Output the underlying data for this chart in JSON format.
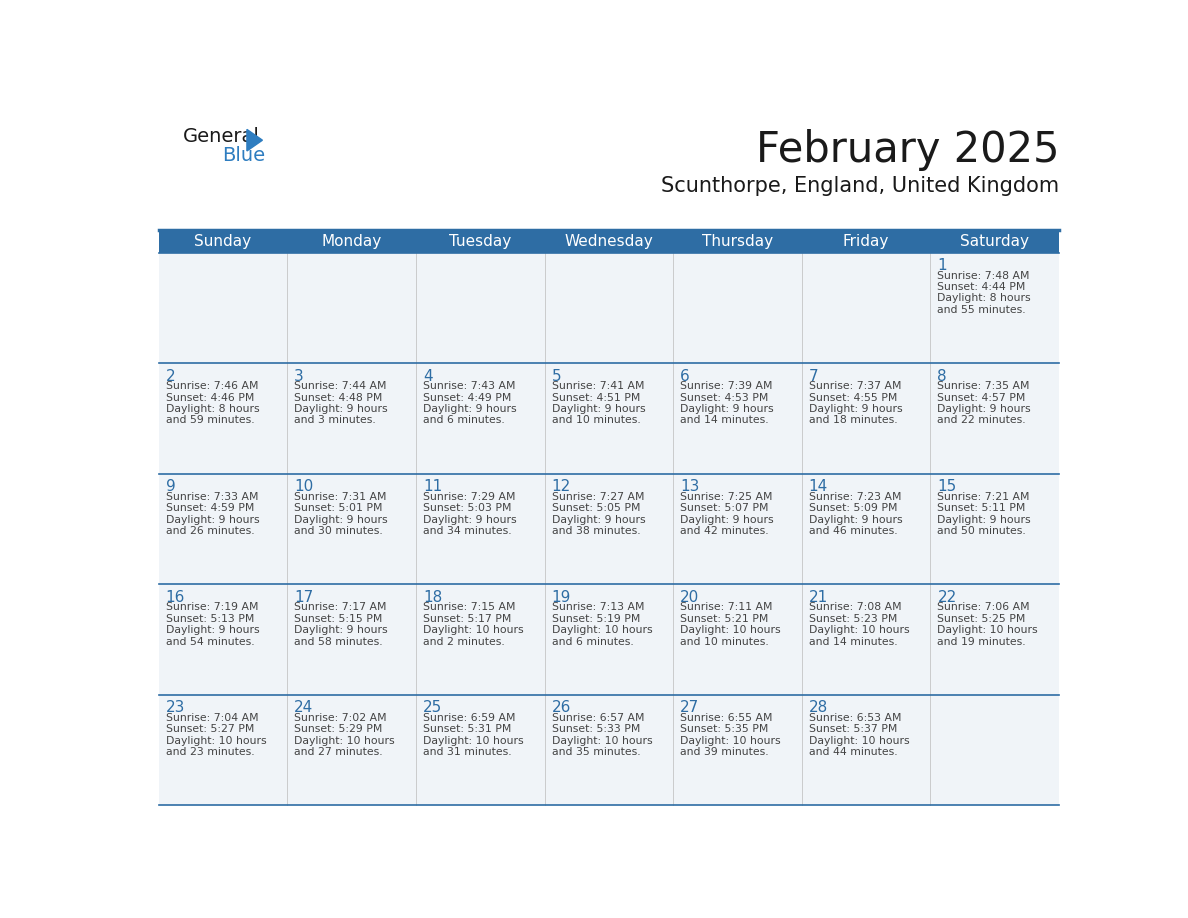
{
  "title": "February 2025",
  "subtitle": "Scunthorpe, England, United Kingdom",
  "days_of_week": [
    "Sunday",
    "Monday",
    "Tuesday",
    "Wednesday",
    "Thursday",
    "Friday",
    "Saturday"
  ],
  "header_bg": "#2E6DA4",
  "header_text": "#FFFFFF",
  "cell_bg_light": "#F0F4F8",
  "cell_bg_white": "#FFFFFF",
  "title_color": "#1a1a1a",
  "subtitle_color": "#1a1a1a",
  "day_number_color": "#2E6DA4",
  "cell_text_color": "#444444",
  "line_color": "#2E6DA4",
  "logo_general_color": "#1a1a1a",
  "logo_blue_color": "#2E7DC0",
  "calendar_data": {
    "1": {
      "sunrise": "7:48 AM",
      "sunset": "4:44 PM",
      "daylight_l1": "8 hours",
      "daylight_l2": "and 55 minutes."
    },
    "2": {
      "sunrise": "7:46 AM",
      "sunset": "4:46 PM",
      "daylight_l1": "8 hours",
      "daylight_l2": "and 59 minutes."
    },
    "3": {
      "sunrise": "7:44 AM",
      "sunset": "4:48 PM",
      "daylight_l1": "9 hours",
      "daylight_l2": "and 3 minutes."
    },
    "4": {
      "sunrise": "7:43 AM",
      "sunset": "4:49 PM",
      "daylight_l1": "9 hours",
      "daylight_l2": "and 6 minutes."
    },
    "5": {
      "sunrise": "7:41 AM",
      "sunset": "4:51 PM",
      "daylight_l1": "9 hours",
      "daylight_l2": "and 10 minutes."
    },
    "6": {
      "sunrise": "7:39 AM",
      "sunset": "4:53 PM",
      "daylight_l1": "9 hours",
      "daylight_l2": "and 14 minutes."
    },
    "7": {
      "sunrise": "7:37 AM",
      "sunset": "4:55 PM",
      "daylight_l1": "9 hours",
      "daylight_l2": "and 18 minutes."
    },
    "8": {
      "sunrise": "7:35 AM",
      "sunset": "4:57 PM",
      "daylight_l1": "9 hours",
      "daylight_l2": "and 22 minutes."
    },
    "9": {
      "sunrise": "7:33 AM",
      "sunset": "4:59 PM",
      "daylight_l1": "9 hours",
      "daylight_l2": "and 26 minutes."
    },
    "10": {
      "sunrise": "7:31 AM",
      "sunset": "5:01 PM",
      "daylight_l1": "9 hours",
      "daylight_l2": "and 30 minutes."
    },
    "11": {
      "sunrise": "7:29 AM",
      "sunset": "5:03 PM",
      "daylight_l1": "9 hours",
      "daylight_l2": "and 34 minutes."
    },
    "12": {
      "sunrise": "7:27 AM",
      "sunset": "5:05 PM",
      "daylight_l1": "9 hours",
      "daylight_l2": "and 38 minutes."
    },
    "13": {
      "sunrise": "7:25 AM",
      "sunset": "5:07 PM",
      "daylight_l1": "9 hours",
      "daylight_l2": "and 42 minutes."
    },
    "14": {
      "sunrise": "7:23 AM",
      "sunset": "5:09 PM",
      "daylight_l1": "9 hours",
      "daylight_l2": "and 46 minutes."
    },
    "15": {
      "sunrise": "7:21 AM",
      "sunset": "5:11 PM",
      "daylight_l1": "9 hours",
      "daylight_l2": "and 50 minutes."
    },
    "16": {
      "sunrise": "7:19 AM",
      "sunset": "5:13 PM",
      "daylight_l1": "9 hours",
      "daylight_l2": "and 54 minutes."
    },
    "17": {
      "sunrise": "7:17 AM",
      "sunset": "5:15 PM",
      "daylight_l1": "9 hours",
      "daylight_l2": "and 58 minutes."
    },
    "18": {
      "sunrise": "7:15 AM",
      "sunset": "5:17 PM",
      "daylight_l1": "10 hours",
      "daylight_l2": "and 2 minutes."
    },
    "19": {
      "sunrise": "7:13 AM",
      "sunset": "5:19 PM",
      "daylight_l1": "10 hours",
      "daylight_l2": "and 6 minutes."
    },
    "20": {
      "sunrise": "7:11 AM",
      "sunset": "5:21 PM",
      "daylight_l1": "10 hours",
      "daylight_l2": "and 10 minutes."
    },
    "21": {
      "sunrise": "7:08 AM",
      "sunset": "5:23 PM",
      "daylight_l1": "10 hours",
      "daylight_l2": "and 14 minutes."
    },
    "22": {
      "sunrise": "7:06 AM",
      "sunset": "5:25 PM",
      "daylight_l1": "10 hours",
      "daylight_l2": "and 19 minutes."
    },
    "23": {
      "sunrise": "7:04 AM",
      "sunset": "5:27 PM",
      "daylight_l1": "10 hours",
      "daylight_l2": "and 23 minutes."
    },
    "24": {
      "sunrise": "7:02 AM",
      "sunset": "5:29 PM",
      "daylight_l1": "10 hours",
      "daylight_l2": "and 27 minutes."
    },
    "25": {
      "sunrise": "6:59 AM",
      "sunset": "5:31 PM",
      "daylight_l1": "10 hours",
      "daylight_l2": "and 31 minutes."
    },
    "26": {
      "sunrise": "6:57 AM",
      "sunset": "5:33 PM",
      "daylight_l1": "10 hours",
      "daylight_l2": "and 35 minutes."
    },
    "27": {
      "sunrise": "6:55 AM",
      "sunset": "5:35 PM",
      "daylight_l1": "10 hours",
      "daylight_l2": "and 39 minutes."
    },
    "28": {
      "sunrise": "6:53 AM",
      "sunset": "5:37 PM",
      "daylight_l1": "10 hours",
      "daylight_l2": "and 44 minutes."
    }
  },
  "week_layout": [
    [
      null,
      null,
      null,
      null,
      null,
      null,
      1
    ],
    [
      2,
      3,
      4,
      5,
      6,
      7,
      8
    ],
    [
      9,
      10,
      11,
      12,
      13,
      14,
      15
    ],
    [
      16,
      17,
      18,
      19,
      20,
      21,
      22
    ],
    [
      23,
      24,
      25,
      26,
      27,
      28,
      null
    ]
  ]
}
